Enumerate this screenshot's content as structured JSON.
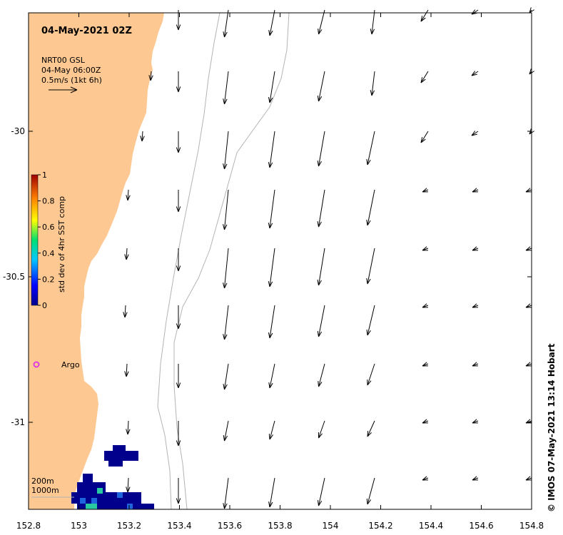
{
  "map": {
    "title": "04-May-2021 02Z",
    "legend_lines": [
      "NRT00 GSL",
      "04-May 06:00Z",
      "0.5m/s (1kt 6h)"
    ],
    "credit": "© IMOS 07-May-2021 13:14 Hobart",
    "colorbar": {
      "title": "std dev of 4hr SST comp",
      "ticks": [
        "1",
        "0.8",
        "0.6",
        "0.4",
        "0.2",
        "0"
      ]
    },
    "marker": {
      "label": "Argo",
      "color": "#e03ce0"
    },
    "depth_labels": [
      "200m",
      "1000m"
    ],
    "lon_ticks": [
      "152.8",
      "153",
      "153.2",
      "153.4",
      "153.6",
      "153.8",
      "154",
      "154.2",
      "154.4",
      "154.6",
      "154.8"
    ],
    "lat_ticks": [
      "-30",
      "-30.5",
      "-31"
    ],
    "colors": {
      "land": "#fdc891",
      "contour": "#b4b4b4",
      "sst_low": "#00008c",
      "sst_mid": "#1e64dc",
      "sst_high": "#28c8a0"
    }
  }
}
